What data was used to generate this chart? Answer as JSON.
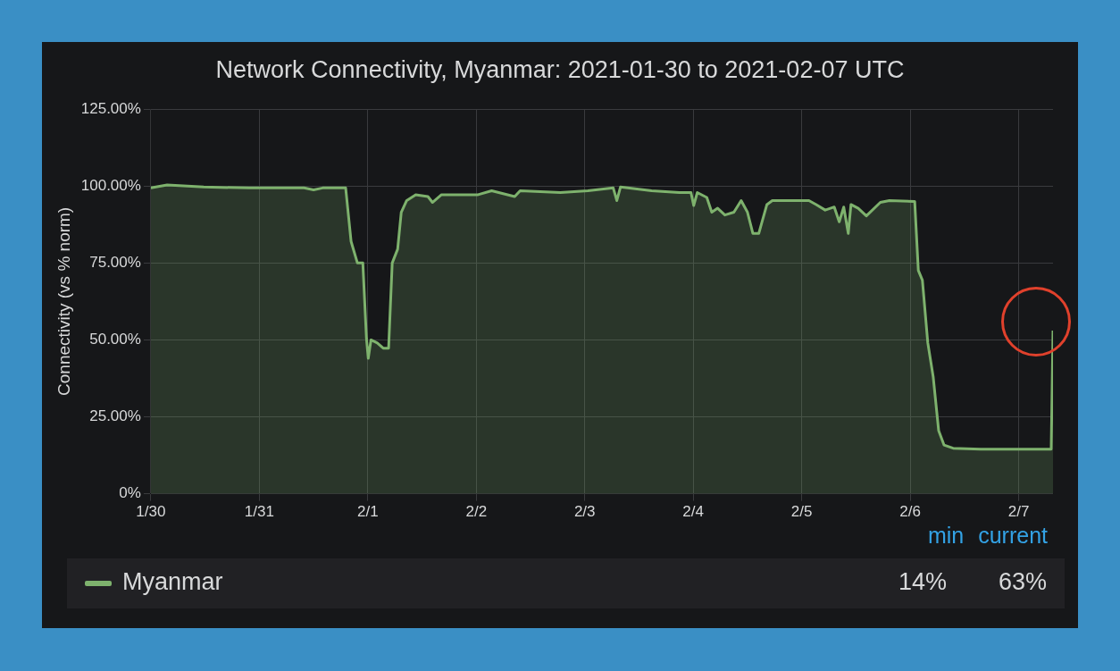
{
  "chart_data": {
    "type": "area",
    "title": "Network Connectivity, Myanmar: 2021-01-30 to 2021-02-07 UTC",
    "ylabel": "Connectivity (vs % norm)",
    "series": [
      {
        "name": "Myanmar",
        "color": "#7eb26d",
        "x": [
          "2021-01-30T00:00",
          "2021-01-30T03:36",
          "2021-01-30T11:42",
          "2021-01-30T21:48",
          "2021-01-31T09:54",
          "2021-01-31T12:00",
          "2021-01-31T14:00",
          "2021-01-31T19:06",
          "2021-01-31T20:18",
          "2021-01-31T21:42",
          "2021-01-31T22:54",
          "2021-01-31T23:42",
          "2021-02-01T00:06",
          "2021-02-01T00:42",
          "2021-02-01T02:06",
          "2021-02-01T03:24",
          "2021-02-01T04:36",
          "2021-02-01T05:24",
          "2021-02-01T06:36",
          "2021-02-01T07:24",
          "2021-02-01T08:36",
          "2021-02-01T10:36",
          "2021-02-01T13:18",
          "2021-02-01T14:18",
          "2021-02-01T16:18",
          "2021-02-02T00:24",
          "2021-02-02T03:24",
          "2021-02-02T08:30",
          "2021-02-02T09:42",
          "2021-02-02T18:36",
          "2021-02-03T00:42",
          "2021-02-03T06:18",
          "2021-02-03T07:06",
          "2021-02-03T07:54",
          "2021-02-03T14:48",
          "2021-02-03T20:54",
          "2021-02-03T23:30",
          "2021-02-04T00:06",
          "2021-02-04T00:54",
          "2021-02-04T03:00",
          "2021-02-04T04:06",
          "2021-02-04T05:24",
          "2021-02-04T07:00",
          "2021-02-04T09:00",
          "2021-02-04T10:36",
          "2021-02-04T12:00",
          "2021-02-04T13:12",
          "2021-02-04T14:30",
          "2021-02-04T16:18",
          "2021-02-04T17:30",
          "2021-02-05T01:36",
          "2021-02-05T03:12",
          "2021-02-05T05:12",
          "2021-02-05T07:12",
          "2021-02-05T08:18",
          "2021-02-05T09:18",
          "2021-02-05T10:18",
          "2021-02-05T10:54",
          "2021-02-05T12:30",
          "2021-02-05T14:18",
          "2021-02-05T17:24",
          "2021-02-05T19:24",
          "2021-02-06T01:00",
          "2021-02-06T01:48",
          "2021-02-06T02:42",
          "2021-02-06T03:54",
          "2021-02-06T05:06",
          "2021-02-06T06:18",
          "2021-02-06T07:30",
          "2021-02-06T09:30",
          "2021-02-06T15:36",
          "2021-02-07T07:12",
          "2021-02-07T07:36"
        ],
        "values": [
          99.4,
          100.4,
          99.7,
          99.4,
          99.4,
          98.8,
          99.4,
          99.4,
          82,
          75,
          75,
          50.5,
          44,
          50,
          49,
          47.3,
          47.3,
          75,
          79.5,
          91.5,
          95.3,
          97.2,
          96.6,
          94.7,
          97.2,
          97.2,
          98.5,
          96.6,
          98.5,
          97.9,
          98.5,
          99.4,
          95.3,
          99.7,
          98.5,
          97.9,
          97.9,
          93.7,
          97.9,
          96.3,
          91.5,
          92.8,
          90.6,
          91.5,
          95.3,
          91.5,
          84.6,
          84.6,
          94,
          95.3,
          95.3,
          94,
          92.2,
          93.2,
          88.4,
          93.2,
          84.6,
          94,
          92.8,
          90.3,
          94.7,
          95.3,
          95,
          72.6,
          69.4,
          49,
          37.9,
          20.5,
          15.8,
          14.8,
          14.5,
          14.5,
          53
        ]
      }
    ],
    "xlim": [
      "2021-01-30",
      "2021-02-07T07:36"
    ],
    "xticks": [
      {
        "value": "2021-01-30",
        "label": "1/30"
      },
      {
        "value": "2021-01-31",
        "label": "1/31"
      },
      {
        "value": "2021-02-01",
        "label": "2/1"
      },
      {
        "value": "2021-02-02",
        "label": "2/2"
      },
      {
        "value": "2021-02-03",
        "label": "2/3"
      },
      {
        "value": "2021-02-04",
        "label": "2/4"
      },
      {
        "value": "2021-02-05",
        "label": "2/5"
      },
      {
        "value": "2021-02-06",
        "label": "2/6"
      },
      {
        "value": "2021-02-07",
        "label": "2/7"
      }
    ],
    "ylim": [
      0,
      125
    ],
    "yticks": [
      {
        "value": 0,
        "label": "0%"
      },
      {
        "value": 25,
        "label": "25.00%"
      },
      {
        "value": 50,
        "label": "50.00%"
      },
      {
        "value": 75,
        "label": "75.00%"
      },
      {
        "value": 100,
        "label": "100.00%"
      },
      {
        "value": 125,
        "label": "125.00%"
      }
    ],
    "grid": true,
    "legend": "bottom",
    "marker": "none",
    "annotations": [
      "min",
      "current",
      "14%",
      "63%"
    ]
  }
}
